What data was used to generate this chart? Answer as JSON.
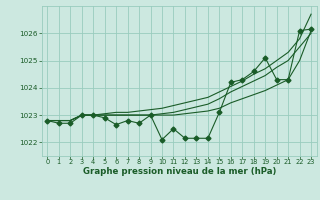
{
  "xlabel": "Graphe pression niveau de la mer (hPa)",
  "bg_color": "#cce8e0",
  "grid_color": "#99ccbe",
  "line_color": "#1a5c28",
  "text_color": "#1a5c28",
  "ylim": [
    1021.5,
    1027.0
  ],
  "xlim": [
    -0.5,
    23.5
  ],
  "xticks": [
    0,
    1,
    2,
    3,
    4,
    5,
    6,
    7,
    8,
    9,
    10,
    11,
    12,
    13,
    14,
    15,
    16,
    17,
    18,
    19,
    20,
    21,
    22,
    23
  ],
  "yticks": [
    1022,
    1023,
    1024,
    1025,
    1026
  ],
  "series": {
    "line1": [
      1022.8,
      1022.7,
      1022.7,
      1023.0,
      1023.0,
      1022.9,
      1022.65,
      1022.8,
      1022.7,
      1023.0,
      1022.1,
      1022.5,
      1022.15,
      1022.15,
      1022.15,
      1023.1,
      1024.2,
      1024.3,
      1024.6,
      1025.1,
      1024.3,
      1024.3,
      1026.1,
      1026.15
    ],
    "line2": [
      1022.8,
      1022.8,
      1022.8,
      1023.0,
      1023.0,
      1023.0,
      1023.0,
      1023.0,
      1023.0,
      1023.0,
      1023.0,
      1023.0,
      1023.05,
      1023.1,
      1023.15,
      1023.25,
      1023.45,
      1023.6,
      1023.75,
      1023.9,
      1024.1,
      1024.3,
      1025.0,
      1026.1
    ],
    "line3": [
      1022.8,
      1022.8,
      1022.8,
      1023.0,
      1023.0,
      1023.0,
      1023.0,
      1023.0,
      1023.0,
      1023.0,
      1023.05,
      1023.1,
      1023.2,
      1023.3,
      1023.4,
      1023.6,
      1023.85,
      1024.05,
      1024.25,
      1024.45,
      1024.75,
      1025.0,
      1025.5,
      1026.0
    ],
    "line4": [
      1022.8,
      1022.8,
      1022.8,
      1023.0,
      1023.0,
      1023.05,
      1023.1,
      1023.1,
      1023.15,
      1023.2,
      1023.25,
      1023.35,
      1023.45,
      1023.55,
      1023.65,
      1023.85,
      1024.05,
      1024.25,
      1024.5,
      1024.7,
      1025.0,
      1025.3,
      1025.8,
      1026.7
    ]
  },
  "marker": "D",
  "marker_size": 2.5
}
